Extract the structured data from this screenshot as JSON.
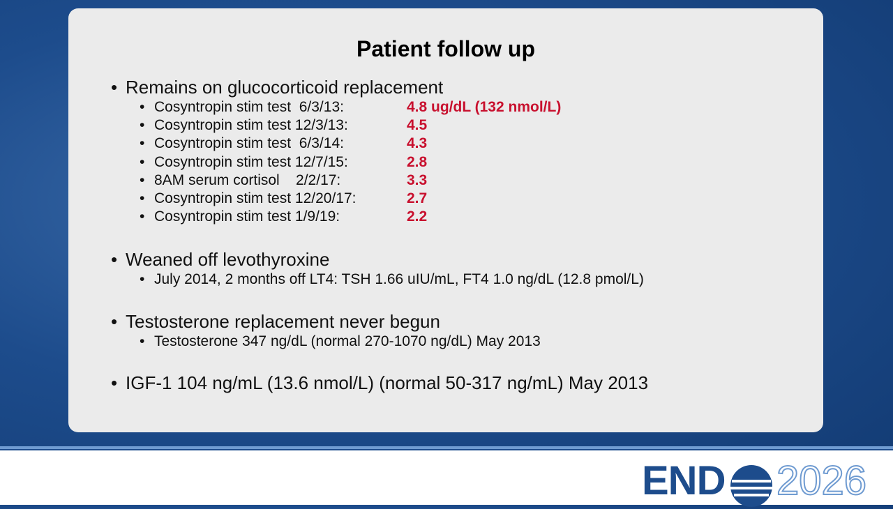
{
  "slide": {
    "title": "Patient follow up",
    "bullets": [
      {
        "text": "Remains on glucocorticoid replacement",
        "items": [
          {
            "label": "Cosyntropin stim test  6/3/13:",
            "value": "4.8 ug/dL (132 nmol/L)"
          },
          {
            "label": "Cosyntropin stim test 12/3/13:",
            "value": "4.5"
          },
          {
            "label": "Cosyntropin stim test  6/3/14:",
            "value": "4.3"
          },
          {
            "label": "Cosyntropin stim test 12/7/15:",
            "value": "2.8"
          },
          {
            "label": "8AM serum cortisol    2/2/17:",
            "value": "3.3"
          },
          {
            "label": "Cosyntropin stim test 12/20/17:",
            "value": "2.7"
          },
          {
            "label": "Cosyntropin stim test 1/9/19:",
            "value": "2.2"
          }
        ]
      },
      {
        "text": "Weaned off levothyroxine",
        "items": [
          {
            "label": "July 2014, 2 months off LT4: TSH 1.66 uIU/mL, FT4 1.0 ng/dL (12.8 pmol/L)"
          }
        ]
      },
      {
        "text": "Testosterone replacement never begun",
        "items": [
          {
            "label": "Testosterone 347 ng/dL (normal 270-1070 ng/dL) May 2013"
          }
        ]
      },
      {
        "text": "IGF-1 104 ng/mL (13.6 nmol/L) (normal 50-317 ng/mL) May 2013",
        "items": []
      }
    ]
  },
  "logo": {
    "left": "END",
    "right": "2026"
  }
}
